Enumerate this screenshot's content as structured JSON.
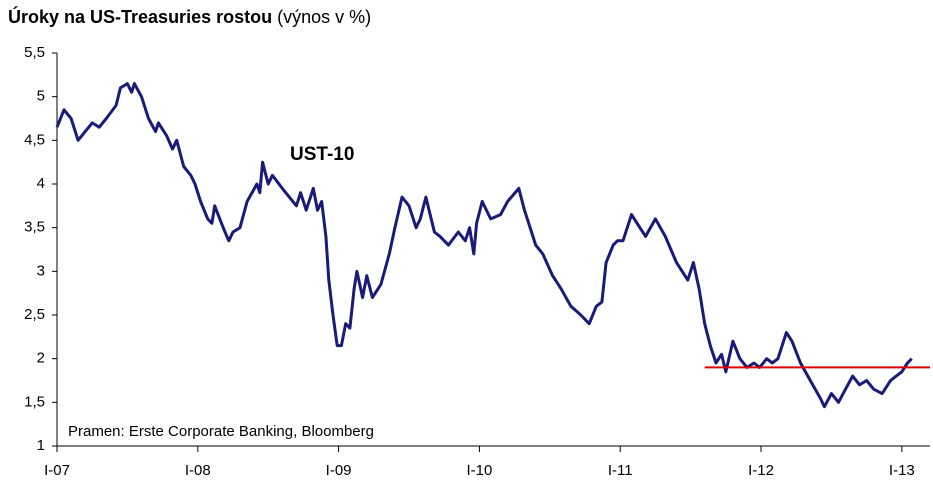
{
  "chart_data": {
    "type": "line",
    "title": "Úroky na US-Treasuries rostou",
    "subtitle": "(výnos v %)",
    "annotation": "UST-10",
    "source": "Pramen: Erste Corporate Banking, Bloomberg",
    "xlim": [
      2007,
      2013.2
    ],
    "xticks": [
      {
        "value": 2007,
        "label": "I-07"
      },
      {
        "value": 2008,
        "label": "I-08"
      },
      {
        "value": 2009,
        "label": "I-09"
      },
      {
        "value": 2010,
        "label": "I-10"
      },
      {
        "value": 2011,
        "label": "I-11"
      },
      {
        "value": 2012,
        "label": "I-12"
      },
      {
        "value": 2013,
        "label": "I-13"
      }
    ],
    "ylim": [
      1,
      5.5
    ],
    "yticks": [
      1,
      {
        "value": 1.5,
        "label": "1,5"
      },
      2,
      {
        "value": 2.5,
        "label": "2,5"
      },
      3,
      {
        "value": 3.5,
        "label": "3,5"
      },
      4,
      {
        "value": 4.5,
        "label": "4,5"
      },
      5,
      {
        "value": 5.5,
        "label": "5,5"
      }
    ],
    "grid": false,
    "x": [
      2007.0,
      2007.05,
      2007.1,
      2007.15,
      2007.2,
      2007.25,
      2007.3,
      2007.35,
      2007.42,
      2007.45,
      2007.5,
      2007.53,
      2007.55,
      2007.6,
      2007.65,
      2007.7,
      2007.72,
      2007.78,
      2007.82,
      2007.85,
      2007.9,
      2007.95,
      2007.98,
      2008.02,
      2008.07,
      2008.1,
      2008.12,
      2008.18,
      2008.22,
      2008.25,
      2008.3,
      2008.35,
      2008.42,
      2008.44,
      2008.46,
      2008.5,
      2008.53,
      2008.6,
      2008.65,
      2008.7,
      2008.73,
      2008.77,
      2008.82,
      2008.85,
      2008.88,
      2008.91,
      2008.93,
      2008.96,
      2008.99,
      2009.02,
      2009.05,
      2009.08,
      2009.11,
      2009.13,
      2009.17,
      2009.2,
      2009.24,
      2009.3,
      2009.36,
      2009.4,
      2009.45,
      2009.5,
      2009.55,
      2009.58,
      2009.62,
      2009.68,
      2009.72,
      2009.78,
      2009.85,
      2009.9,
      2009.93,
      2009.96,
      2009.98,
      2010.02,
      2010.08,
      2010.15,
      2010.2,
      2010.28,
      2010.32,
      2010.4,
      2010.45,
      2010.52,
      2010.58,
      2010.65,
      2010.72,
      2010.78,
      2010.83,
      2010.87,
      2010.9,
      2010.95,
      2010.98,
      2011.02,
      2011.08,
      2011.12,
      2011.18,
      2011.25,
      2011.32,
      2011.4,
      2011.48,
      2011.52,
      2011.56,
      2011.6,
      2011.64,
      2011.68,
      2011.72,
      2011.75,
      2011.8,
      2011.85,
      2011.9,
      2011.95,
      2011.99,
      2012.04,
      2012.08,
      2012.12,
      2012.18,
      2012.22,
      2012.28,
      2012.35,
      2012.42,
      2012.45,
      2012.5,
      2012.55,
      2012.6,
      2012.65,
      2012.7,
      2012.75,
      2012.8,
      2012.86,
      2012.92,
      2012.96,
      2013.0,
      2013.04,
      2013.07
    ],
    "series": [
      {
        "name": "UST-10",
        "color": "#1a1a78",
        "values": [
          4.65,
          4.85,
          4.75,
          4.5,
          4.6,
          4.7,
          4.65,
          4.75,
          4.9,
          5.1,
          5.15,
          5.05,
          5.15,
          5.0,
          4.75,
          4.6,
          4.7,
          4.55,
          4.4,
          4.5,
          4.2,
          4.1,
          4.0,
          3.8,
          3.6,
          3.55,
          3.75,
          3.5,
          3.35,
          3.45,
          3.5,
          3.8,
          4.0,
          3.9,
          4.25,
          4.0,
          4.1,
          3.95,
          3.85,
          3.75,
          3.9,
          3.7,
          3.95,
          3.7,
          3.8,
          3.4,
          2.9,
          2.5,
          2.15,
          2.15,
          2.4,
          2.35,
          2.8,
          3.0,
          2.7,
          2.95,
          2.7,
          2.85,
          3.2,
          3.5,
          3.85,
          3.75,
          3.5,
          3.6,
          3.85,
          3.45,
          3.4,
          3.3,
          3.45,
          3.35,
          3.5,
          3.2,
          3.55,
          3.8,
          3.6,
          3.65,
          3.8,
          3.95,
          3.7,
          3.3,
          3.2,
          2.95,
          2.8,
          2.6,
          2.5,
          2.4,
          2.6,
          2.65,
          3.1,
          3.3,
          3.35,
          3.35,
          3.65,
          3.55,
          3.4,
          3.6,
          3.4,
          3.1,
          2.9,
          3.1,
          2.8,
          2.4,
          2.15,
          1.95,
          2.05,
          1.85,
          2.2,
          2.0,
          1.9,
          1.95,
          1.9,
          2.0,
          1.95,
          2.0,
          2.3,
          2.2,
          1.95,
          1.75,
          1.55,
          1.45,
          1.6,
          1.5,
          1.65,
          1.8,
          1.7,
          1.75,
          1.65,
          1.6,
          1.75,
          1.8,
          1.85,
          1.95,
          2.0
        ]
      }
    ],
    "reference_line": {
      "y": 1.9,
      "x": [
        2011.6,
        2013.2
      ],
      "color": "#e00000"
    }
  }
}
